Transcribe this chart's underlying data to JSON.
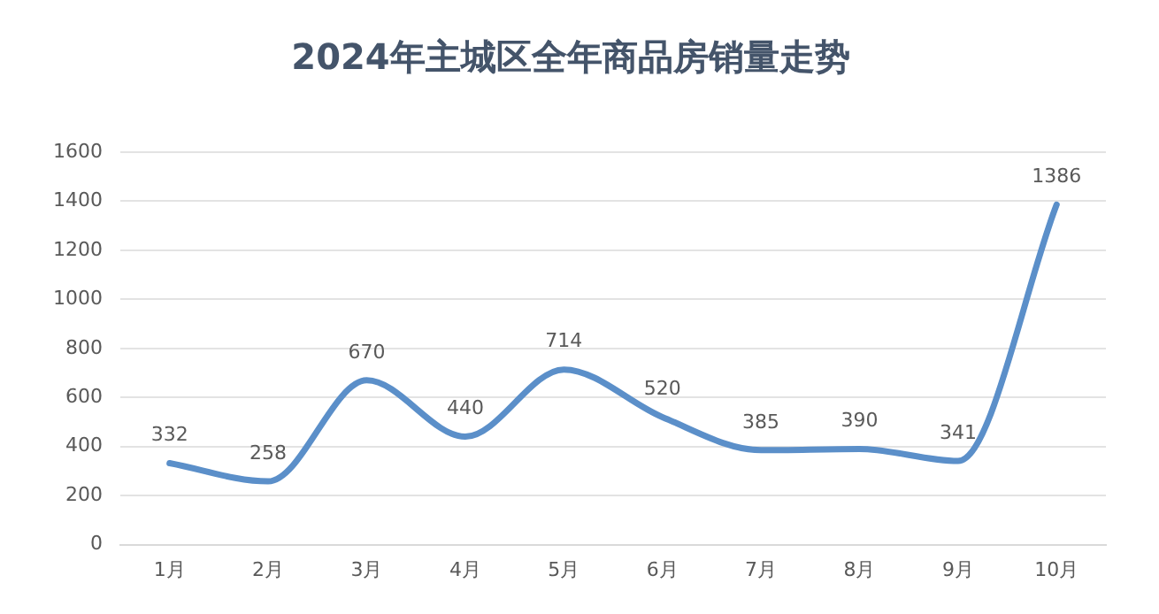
{
  "chart_data": {
    "type": "line",
    "title": "2024年主城区全年商品房销量走势",
    "categories": [
      "1月",
      "2月",
      "3月",
      "4月",
      "5月",
      "6月",
      "7月",
      "8月",
      "9月",
      "10月"
    ],
    "series": [
      {
        "color": "#5b8fc9",
        "values": [
          332,
          258,
          670,
          440,
          714,
          520,
          385,
          390,
          341,
          1386
        ]
      }
    ],
    "ylim": [
      0,
      1600
    ],
    "yticks": [
      0,
      200,
      400,
      600,
      800,
      1000,
      1200,
      1400,
      1600
    ],
    "grid": "y",
    "legend": false,
    "marker": "none",
    "line_style": "solid",
    "data_labels": true
  }
}
